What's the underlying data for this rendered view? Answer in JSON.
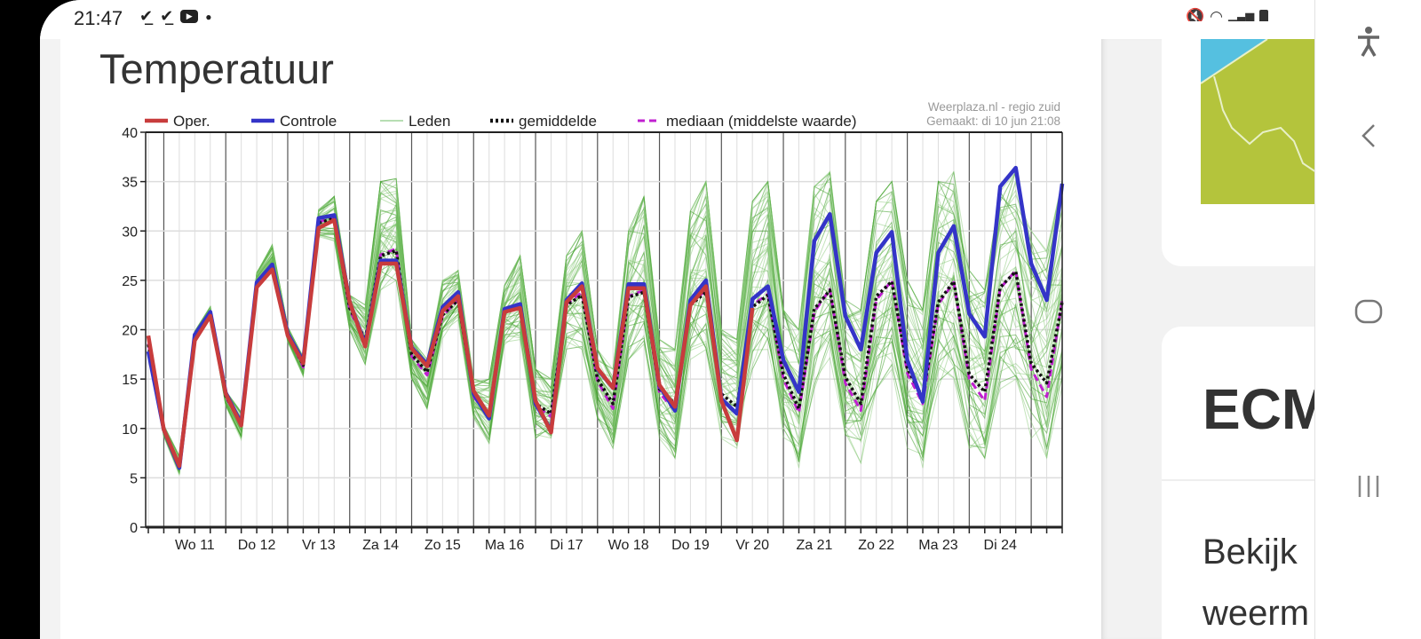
{
  "status_bar": {
    "time": "21:47",
    "left_icons": [
      "check-download-icon",
      "check-download-icon",
      "youtube-icon",
      "dot-icon"
    ],
    "right_icons": [
      "mute-vibrate-icon",
      "wifi-icon",
      "signal-icon",
      "battery-icon"
    ]
  },
  "page": {
    "title": "Temperatuur"
  },
  "aside": {
    "card_title": "ECM",
    "text_line1": "Bekijk",
    "text_line2": "weerm",
    "map_colors": {
      "sea": "#55c0e0",
      "land": "#b4c43c"
    }
  },
  "nav": {
    "icons": [
      "accessibility-icon",
      "back-icon",
      "home-icon",
      "recent-apps-icon"
    ]
  },
  "chart_data": {
    "type": "line",
    "credit_line1": "Weerplaza.nl - regio zuid",
    "credit_line2": "Gemaakt: di 10 jun 21:08",
    "ylim": [
      0,
      40
    ],
    "yticks": [
      0,
      5,
      10,
      15,
      20,
      25,
      30,
      35,
      40
    ],
    "xlim": [
      "10 jun 18:00",
      "25 jun 12:00"
    ],
    "step_hours": 6,
    "grid": true,
    "legend_placement": "top",
    "xtick_labels": [
      "Wo 11",
      "Do 12",
      "Vr 13",
      "Za 14",
      "Zo 15",
      "Ma 16",
      "Di 17",
      "Wo 18",
      "Do 19",
      "Vr 20",
      "Za 21",
      "Zo 22",
      "Ma 23",
      "Di 24"
    ],
    "legend": [
      {
        "label": "Oper.",
        "color": "#c83c3c",
        "style": "solid"
      },
      {
        "label": "Controle",
        "color": "#3434c8",
        "style": "solid"
      },
      {
        "label": "Leden",
        "color": "#9fd49a",
        "style": "thin"
      },
      {
        "label": "gemiddelde",
        "color": "#111111",
        "style": "dotted"
      },
      {
        "label": "mediaan (middelste waarde)",
        "color": "#c020d0",
        "style": "dashed"
      }
    ],
    "series": [
      {
        "name": "Oper.",
        "color": "#c83c3c",
        "values": [
          19.4,
          9.9,
          6.2,
          18.9,
          21.4,
          13.5,
          10.3,
          24.3,
          26.1,
          19.4,
          16.6,
          30.3,
          31.1,
          22.8,
          18.3,
          26.7,
          26.7,
          18.1,
          16.3,
          21.9,
          23.4,
          13.8,
          11.3,
          21.8,
          22.2,
          12.8,
          9.6,
          22.8,
          24.4,
          16.1,
          14.1,
          24.2,
          24.2,
          14.4,
          12.2,
          22.5,
          24.4,
          12.8,
          8.8,
          22.2,
          null,
          null,
          null,
          null,
          null,
          null,
          null,
          null,
          null,
          null,
          null,
          null,
          null,
          null,
          null,
          null,
          null,
          null,
          null,
          null
        ]
      },
      {
        "name": "Controle",
        "color": "#3434c8",
        "values": [
          17.8,
          9.9,
          6.0,
          19.5,
          21.8,
          13.6,
          10.5,
          24.8,
          26.6,
          19.6,
          16.8,
          31.3,
          31.6,
          22.8,
          18.5,
          27.0,
          27.0,
          18.2,
          16.5,
          22.3,
          23.8,
          13.5,
          11.0,
          22.1,
          22.6,
          12.5,
          9.8,
          23.0,
          24.7,
          16.0,
          14.1,
          24.6,
          24.6,
          14.3,
          11.8,
          23.0,
          25.0,
          13.0,
          11.5,
          23.1,
          24.4,
          16.9,
          13.7,
          29.0,
          31.7,
          21.4,
          18.0,
          27.8,
          29.9,
          16.9,
          12.7,
          27.8,
          30.5,
          21.6,
          19.3,
          34.5,
          36.4,
          26.7,
          23.0,
          34.8
        ]
      },
      {
        "name": "gemiddelde",
        "color": "#111111",
        "values": [
          18.5,
          9.8,
          6.3,
          19.0,
          21.5,
          13.3,
          10.4,
          24.5,
          26.5,
          19.5,
          16.4,
          30.8,
          31.3,
          22.2,
          19.0,
          27.5,
          28.0,
          17.5,
          15.7,
          21.5,
          23.0,
          13.5,
          11.5,
          21.8,
          22.3,
          12.5,
          11.5,
          22.5,
          23.5,
          15.0,
          12.5,
          23.3,
          23.8,
          14.0,
          12.5,
          22.5,
          23.8,
          13.5,
          12.2,
          22.3,
          23.5,
          15.5,
          12.0,
          22.1,
          24.0,
          15.2,
          12.5,
          23.4,
          24.9,
          16.1,
          13.1,
          22.8,
          24.9,
          15.5,
          13.7,
          24.3,
          25.9,
          16.6,
          14.6,
          22.8
        ]
      },
      {
        "name": "mediaan (middelste waarde)",
        "color": "#c020d0",
        "values": [
          18.6,
          9.8,
          6.2,
          19.0,
          21.5,
          13.2,
          10.3,
          24.4,
          26.6,
          19.6,
          16.2,
          30.9,
          31.4,
          22.0,
          18.8,
          27.6,
          28.2,
          17.3,
          15.4,
          21.4,
          23.0,
          13.2,
          11.2,
          21.9,
          22.4,
          12.3,
          11.2,
          22.6,
          23.8,
          14.8,
          12.0,
          23.4,
          24.0,
          13.6,
          11.8,
          22.6,
          24.0,
          13.0,
          11.6,
          22.5,
          23.6,
          15.0,
          11.6,
          21.8,
          24.1,
          14.6,
          11.8,
          23.0,
          25.0,
          15.6,
          12.5,
          22.6,
          24.8,
          15.0,
          12.8,
          24.2,
          26.0,
          16.0,
          13.2,
          23.0
        ]
      }
    ],
    "leden_range": {
      "name": "Leden",
      "color": "#5cb33c",
      "min": [
        17,
        9,
        5,
        18.5,
        21,
        12,
        8.5,
        24,
        25.5,
        18.5,
        15,
        29,
        29,
        20,
        16.5,
        24,
        25,
        15,
        12,
        19,
        21,
        11,
        8.5,
        18.5,
        19,
        9,
        9,
        18,
        18,
        11,
        8,
        17,
        18,
        9,
        7,
        17,
        18,
        9,
        8,
        16,
        18,
        9,
        6,
        14,
        17,
        8,
        6.5,
        14,
        16,
        8,
        6,
        14,
        15,
        8,
        7,
        14,
        15,
        9,
        7,
        14
      ],
      "max": [
        19.5,
        10.5,
        7.5,
        20,
        22.5,
        14,
        12,
        26,
        29,
        20.5,
        17.5,
        32.5,
        33.5,
        23.5,
        22.5,
        35,
        35.3,
        19,
        17,
        25,
        26,
        15,
        15,
        24.5,
        27.5,
        16,
        15,
        27.5,
        30,
        18,
        16,
        30,
        33.5,
        19,
        18,
        32,
        35,
        20,
        19,
        33,
        35,
        22,
        20,
        34.5,
        36,
        23,
        22,
        33,
        35,
        25,
        22,
        35,
        36,
        26,
        24,
        34,
        36,
        30,
        28,
        35
      ]
    }
  }
}
